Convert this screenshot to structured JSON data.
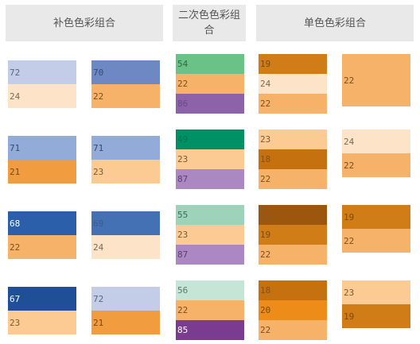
{
  "headers": [
    {
      "label": "补色色彩组合"
    },
    {
      "label": "二次色色彩组合"
    },
    {
      "label": "单色色彩组合"
    }
  ],
  "columns": [
    {
      "name": "complementary-left",
      "groups": [
        [
          {
            "value": "72",
            "color": "#c3cde8",
            "text": "#5a6680"
          },
          {
            "value": "24",
            "color": "#fde4c8",
            "text": "#7a6a55"
          }
        ],
        [
          {
            "value": "71",
            "color": "#93abd8",
            "text": "#3a4a70"
          },
          {
            "value": "21",
            "color": "#f29c40",
            "text": "#7a4a10"
          }
        ],
        [
          {
            "value": "68",
            "color": "#2b5fa9",
            "text": "#ffffff"
          },
          {
            "value": "22",
            "color": "#f7b26a",
            "text": "#7a5020"
          }
        ],
        [
          {
            "value": "67",
            "color": "#1f4f96",
            "text": "#ffffff"
          },
          {
            "value": "23",
            "color": "#fbcb93",
            "text": "#7a5a30"
          }
        ]
      ]
    },
    {
      "name": "complementary-right",
      "groups": [
        [
          {
            "value": "70",
            "color": "#6e88c4",
            "text": "#3a4a70"
          },
          {
            "value": "22",
            "color": "#f7b26a",
            "text": "#7a5020"
          }
        ],
        [
          {
            "value": "71",
            "color": "#93abd8",
            "text": "#3a4a70"
          },
          {
            "value": "23",
            "color": "#fbcb93",
            "text": "#7a5a30"
          }
        ],
        [
          {
            "value": "69",
            "color": "#4470b4",
            "text": "#3a5a90"
          },
          {
            "value": "24",
            "color": "#fde4c8",
            "text": "#7a6a55"
          }
        ],
        [
          {
            "value": "72",
            "color": "#c3cde8",
            "text": "#5a6680"
          },
          {
            "value": "21",
            "color": "#f29c40",
            "text": "#7a4a10"
          }
        ]
      ]
    },
    {
      "name": "secondary",
      "groups": [
        [
          {
            "value": "54",
            "color": "#6ac286",
            "text": "#2e6a42"
          },
          {
            "value": "22",
            "color": "#f7b26a",
            "text": "#7a5020"
          },
          {
            "value": "86",
            "color": "#8c62a8",
            "text": "#6a4a88"
          }
        ],
        [
          {
            "value": "49",
            "color": "#009066",
            "text": "#007050"
          },
          {
            "value": "23",
            "color": "#fbcb93",
            "text": "#7a5a30"
          },
          {
            "value": "87",
            "color": "#ab88c2",
            "text": "#5a4070"
          }
        ],
        [
          {
            "value": "55",
            "color": "#9dd3bb",
            "text": "#3e6a58"
          },
          {
            "value": "23",
            "color": "#fbcb93",
            "text": "#7a5a30"
          },
          {
            "value": "87",
            "color": "#ab88c2",
            "text": "#5a4070"
          }
        ],
        [
          {
            "value": "56",
            "color": "#c5e5d6",
            "text": "#5a7a6a"
          },
          {
            "value": "22",
            "color": "#f7b26a",
            "text": "#7a5020"
          },
          {
            "value": "85",
            "color": "#7a3c8e",
            "text": "#ffffff"
          }
        ]
      ]
    },
    {
      "name": "monochrome-left",
      "groups": [
        [
          {
            "value": "19",
            "color": "#d07d18",
            "text": "#7a4a10"
          },
          {
            "value": "24",
            "color": "#fde4c8",
            "text": "#7a6a55"
          },
          {
            "value": "22",
            "color": "#f7b26a",
            "text": "#7a5020"
          }
        ],
        [
          {
            "value": "23",
            "color": "#fbcb93",
            "text": "#7a5a30"
          },
          {
            "value": "18",
            "color": "#c57110",
            "text": "#8a5010"
          },
          {
            "value": "22",
            "color": "#f7b26a",
            "text": "#7a5020"
          }
        ],
        [
          {
            "value": "17",
            "color": "#9c560e",
            "text": "#8a5a20"
          },
          {
            "value": "19",
            "color": "#d07d18",
            "text": "#7a4a10"
          },
          {
            "value": "22",
            "color": "#f7b26a",
            "text": "#7a5020"
          }
        ],
        [
          {
            "value": "18",
            "color": "#c57110",
            "text": "#8a5010"
          },
          {
            "value": "20",
            "color": "#ee8c1a",
            "text": "#7a4a10"
          },
          {
            "value": "22",
            "color": "#f7b26a",
            "text": "#7a5020"
          }
        ]
      ]
    },
    {
      "name": "monochrome-right",
      "groups": [
        [
          {
            "value": "22",
            "color": "#f7b26a",
            "text": "#7a5020"
          }
        ],
        [
          {
            "value": "24",
            "color": "#fde4c8",
            "text": "#7a6a55"
          },
          {
            "value": "22",
            "color": "#f7b26a",
            "text": "#7a5020"
          }
        ],
        [
          {
            "value": "19",
            "color": "#d07d18",
            "text": "#7a4a10"
          },
          {
            "value": "22",
            "color": "#f7b26a",
            "text": "#7a5020"
          }
        ],
        [
          {
            "value": "23",
            "color": "#fbcb93",
            "text": "#7a5a30"
          },
          {
            "value": "19",
            "color": "#d07d18",
            "text": "#7a4a10"
          }
        ]
      ]
    }
  ]
}
